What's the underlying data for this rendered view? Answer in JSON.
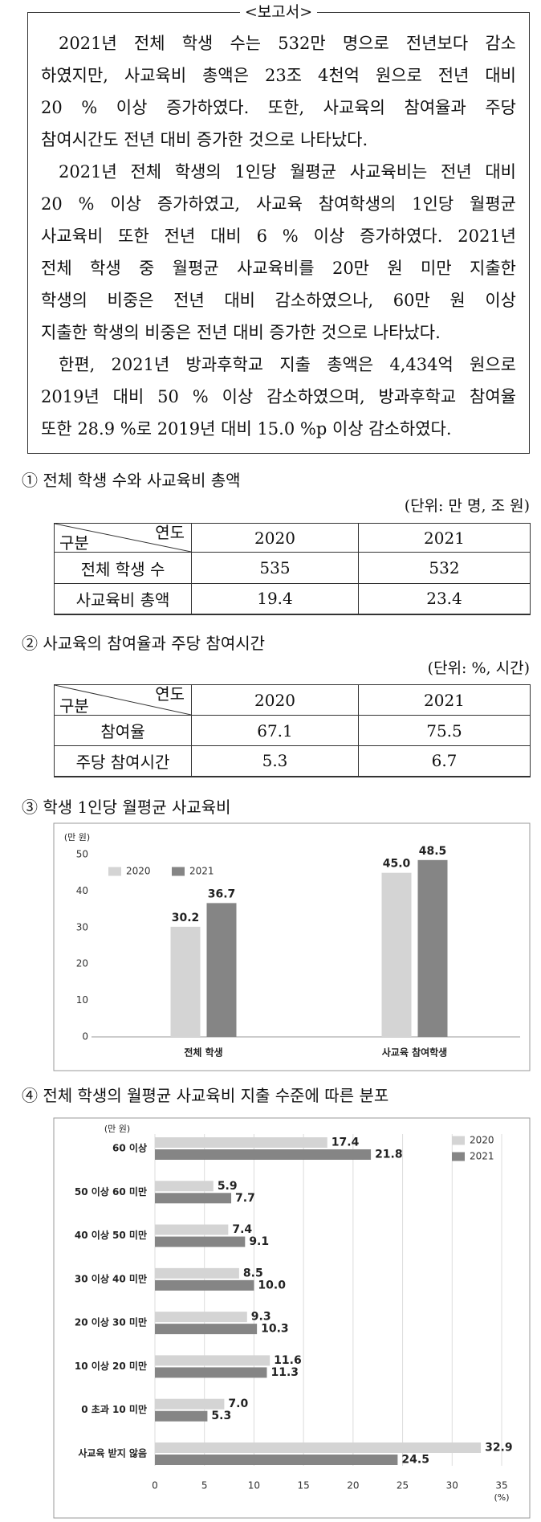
{
  "report": {
    "title": "<보고서>",
    "paragraphs": [
      [
        "2021년 전체 학생 수는 532만 명으로 전년보다 감소",
        "하였지만, 사교육비 총액은 23조 4천억 원으로 전년 대비",
        "20 % 이상 증가하였다. 또한, 사교육의 참여율과 주당",
        "참여시간도 전년 대비 증가한 것으로 나타났다."
      ],
      [
        "2021년 전체 학생의 1인당 월평균 사교육비는 전년 대비",
        "20 % 이상 증가하였고, 사교육 참여학생의 1인당 월평균",
        "사교육비 또한 전년 대비 6 % 이상 증가하였다. 2021년",
        "전체 학생 중 월평균 사교육비를 20만 원 미만 지출한",
        "학생의 비중은 전년 대비 감소하였으나, 60만 원 이상",
        "지출한 학생의 비중은 전년 대비 증가한 것으로 나타났다."
      ],
      [
        "한편, 2021년 방과후학교 지출 총액은 4,434억 원으로",
        "2019년 대비 50 % 이상 감소하였으며, 방과후학교 참여율",
        "또한 28.9 %로 2019년 대비 15.0 %p 이상 감소하였다."
      ]
    ]
  },
  "tables": [
    {
      "title": "① 전체 학생 수와 사교육비 총액",
      "unit": "(단위: 만 명, 조 원)",
      "corner_top": "연도",
      "corner_bottom": "구분",
      "columns": [
        "2020",
        "2021"
      ],
      "rows": [
        [
          "전체 학생 수",
          "535",
          "532"
        ],
        [
          "사교육비 총액",
          "19.4",
          "23.4"
        ]
      ]
    },
    {
      "title": "② 사교육의 참여율과 주당 참여시간",
      "unit": "(단위: %, 시간)",
      "corner_top": "연도",
      "corner_bottom": "구분",
      "columns": [
        "2020",
        "2021"
      ],
      "rows": [
        [
          "참여율",
          "67.1",
          "75.5"
        ],
        [
          "주당 참여시간",
          "5.3",
          "6.7"
        ]
      ]
    }
  ],
  "chart_data": [
    {
      "type": "bar",
      "title": "③ 학생 1인당 월평균 사교육비",
      "y_unit": "(만 원)",
      "categories": [
        "전체 학생",
        "사교육 참여학생"
      ],
      "series": [
        {
          "name": "2020",
          "color": "#d4d4d4",
          "values": [
            30.2,
            45.0
          ],
          "value_labels": [
            "30.2",
            "45.0"
          ]
        },
        {
          "name": "2021",
          "color": "#858585",
          "values": [
            36.7,
            48.5
          ],
          "value_labels": [
            "36.7",
            "48.5"
          ]
        }
      ],
      "ylim": [
        0,
        50
      ],
      "yticks": [
        0,
        10,
        20,
        30,
        40,
        50
      ],
      "grid": false,
      "legend": "top-left"
    },
    {
      "type": "barh",
      "title": "④ 전체 학생의 월평균 사교육비 지출 수준에 따른 분포",
      "y_unit": "(만 원)",
      "x_unit": "(%)",
      "categories": [
        "60 이상",
        "50 이상  60 미만",
        "40 이상 50 미만",
        "30 이상 40 미만",
        "20 이상 30 미만",
        "10 이상 20 미만",
        "0 초과 10 미만",
        "사교육 받지 않음"
      ],
      "series": [
        {
          "name": "2020",
          "color": "#d4d4d4",
          "values": [
            17.4,
            5.9,
            7.4,
            8.5,
            9.3,
            11.6,
            7.0,
            32.9
          ],
          "value_labels": [
            "17.4",
            "5.9",
            "7.4",
            "8.5",
            "9.3",
            "11.6",
            "7.0",
            "32.9"
          ]
        },
        {
          "name": "2021",
          "color": "#858585",
          "values": [
            21.8,
            7.7,
            9.1,
            10.0,
            10.3,
            11.3,
            5.3,
            24.5
          ],
          "value_labels": [
            "21.8",
            "7.7",
            "9.1",
            "10.0",
            "10.3",
            "11.3",
            "5.3",
            "24.5"
          ]
        }
      ],
      "xlim": [
        0,
        35
      ],
      "xticks": [
        0,
        5,
        10,
        15,
        20,
        25,
        30,
        35
      ],
      "grid": true,
      "legend": "top-right"
    }
  ]
}
